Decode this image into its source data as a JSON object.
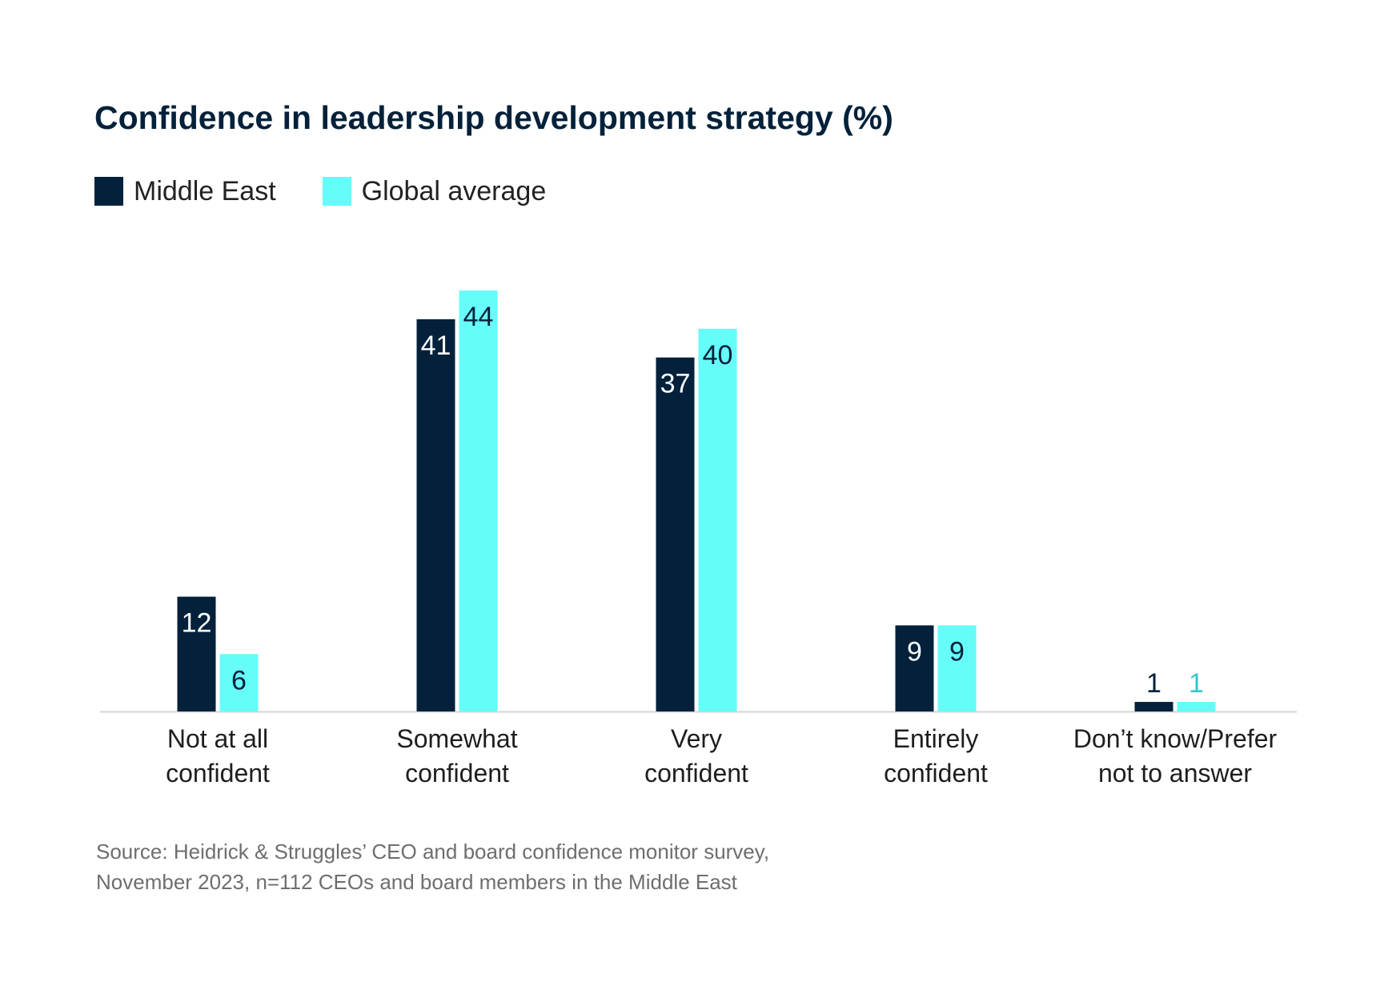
{
  "title": "Confidence in leadership development strategy (%)",
  "legend": [
    {
      "label": "Middle East",
      "color": "#03213a"
    },
    {
      "label": "Global average",
      "color": "#66fcf9"
    }
  ],
  "chart_data": {
    "type": "bar",
    "title": "Confidence in leadership development strategy (%)",
    "categories": [
      [
        "Not at all",
        "confident"
      ],
      [
        "Somewhat",
        "confident"
      ],
      [
        "Very",
        "confident"
      ],
      [
        "Entirely",
        "confident"
      ],
      [
        "Don’t know/Prefer",
        "not to answer"
      ]
    ],
    "series": [
      {
        "name": "Middle East",
        "color": "#03213a",
        "values": [
          12,
          41,
          37,
          9,
          1
        ]
      },
      {
        "name": "Global average",
        "color": "#66fcf9",
        "values": [
          6,
          44,
          40,
          9,
          1
        ]
      }
    ],
    "ylim": [
      0,
      44
    ],
    "grid": false,
    "legend_position": "top-left",
    "xlabel": "",
    "ylabel": ""
  },
  "source": {
    "line1": "Source: Heidrick & Struggles’ CEO and board confidence monitor survey,",
    "line2": "November 2023, n=112 CEOs and board members in the Middle East"
  }
}
